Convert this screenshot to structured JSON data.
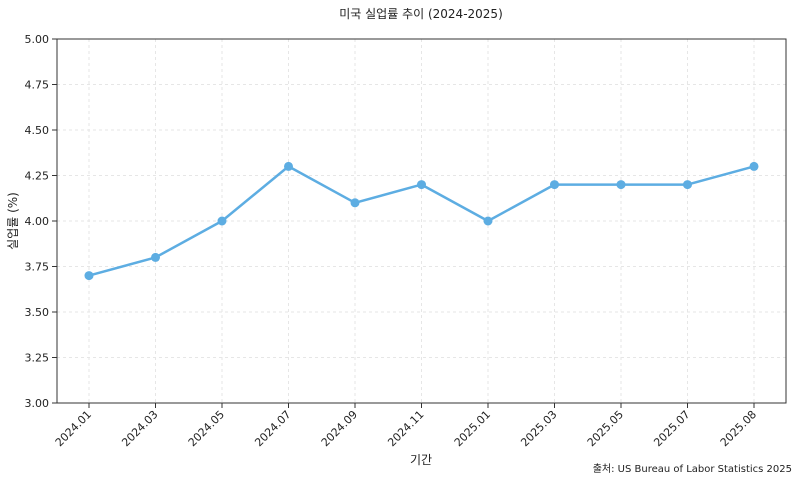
{
  "chart_data": {
    "type": "line",
    "title": "미국 실업률 추이 (2024-2025)",
    "xlabel": "기간",
    "ylabel": "실업률 (%)",
    "categories": [
      "2024.01",
      "2024.03",
      "2024.05",
      "2024.07",
      "2024.09",
      "2024.11",
      "2025.01",
      "2025.03",
      "2025.05",
      "2025.07",
      "2025.08"
    ],
    "series": [
      {
        "values": [
          3.7,
          3.8,
          4.0,
          4.3,
          4.1,
          4.2,
          4.0,
          4.2,
          4.2,
          4.2,
          4.3
        ]
      }
    ],
    "ylim": [
      3.0,
      5.0
    ],
    "yticks": [
      "3.00",
      "3.25",
      "3.50",
      "3.75",
      "4.00",
      "4.25",
      "4.50",
      "4.75",
      "5.00"
    ],
    "grid": true,
    "source": "출처: US Bureau of Labor Statistics 2025",
    "colors": {
      "line": "#5dade2",
      "marker": "#5dade2",
      "grid": "#e6e6e6",
      "axis": "#333333"
    }
  }
}
